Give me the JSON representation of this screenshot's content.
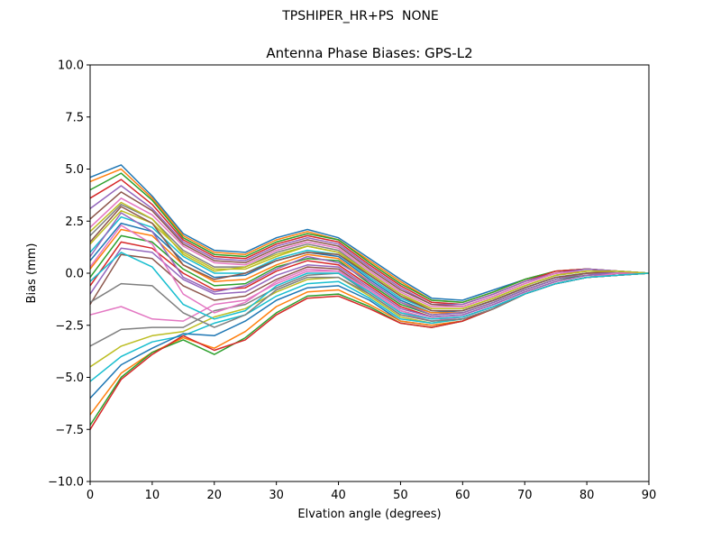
{
  "figure": {
    "suptitle": "TPSHIPER_HR+PS  NONE"
  },
  "chart_data": {
    "type": "line",
    "title": "Antenna Phase Biases: GPS-L2",
    "xlabel": "Elvation angle (degrees)",
    "ylabel": "Bias (mm)",
    "xlim": [
      0,
      90
    ],
    "ylim": [
      -10,
      10
    ],
    "xticks": [
      0,
      10,
      20,
      30,
      40,
      50,
      60,
      70,
      80,
      90
    ],
    "yticks": [
      -10.0,
      -7.5,
      -5.0,
      -2.5,
      0.0,
      2.5,
      5.0,
      7.5,
      10.0
    ],
    "xtick_labels": [
      "0",
      "10",
      "20",
      "30",
      "40",
      "50",
      "60",
      "70",
      "80",
      "90"
    ],
    "ytick_labels": [
      "−10.0",
      "−7.5",
      "−5.0",
      "−2.5",
      "0.0",
      "2.5",
      "5.0",
      "7.5",
      "10.0"
    ],
    "grid": false,
    "legend": "none",
    "colors": [
      "#1f77b4",
      "#ff7f0e",
      "#2ca02c",
      "#d62728",
      "#9467bd",
      "#8c564b",
      "#e377c2",
      "#7f7f7f",
      "#bcbd22",
      "#17becf"
    ],
    "x": [
      0,
      5,
      10,
      15,
      20,
      25,
      30,
      35,
      40,
      45,
      50,
      55,
      60,
      65,
      70,
      75,
      80,
      85,
      90
    ],
    "series": [
      {
        "values": [
          4.6,
          5.2,
          3.7,
          1.9,
          1.1,
          1.0,
          1.7,
          2.1,
          1.7,
          0.7,
          -0.3,
          -1.2,
          -1.3,
          -0.8,
          -0.3,
          0.1,
          0.2,
          0.1,
          0.0
        ]
      },
      {
        "values": [
          4.4,
          5.0,
          3.6,
          1.8,
          1.0,
          0.9,
          1.6,
          2.0,
          1.6,
          0.6,
          -0.4,
          -1.3,
          -1.4,
          -0.9,
          -0.3,
          0.1,
          0.2,
          0.1,
          0.0
        ]
      },
      {
        "values": [
          4.0,
          4.8,
          3.5,
          1.7,
          0.9,
          0.8,
          1.5,
          1.9,
          1.6,
          0.5,
          -0.5,
          -1.3,
          -1.4,
          -0.9,
          -0.3,
          0.1,
          0.2,
          0.1,
          0.0
        ]
      },
      {
        "values": [
          3.6,
          4.5,
          3.3,
          1.6,
          0.8,
          0.7,
          1.4,
          1.8,
          1.5,
          0.4,
          -0.6,
          -1.4,
          -1.5,
          -1.0,
          -0.4,
          0.1,
          0.2,
          0.1,
          0.0
        ]
      },
      {
        "values": [
          3.1,
          4.2,
          3.1,
          1.5,
          0.7,
          0.6,
          1.3,
          1.7,
          1.4,
          0.3,
          -0.7,
          -1.5,
          -1.5,
          -1.0,
          -0.4,
          0.0,
          0.2,
          0.1,
          0.0
        ]
      },
      {
        "values": [
          2.6,
          3.9,
          3.0,
          1.4,
          0.6,
          0.5,
          1.2,
          1.6,
          1.3,
          0.2,
          -0.8,
          -1.5,
          -1.6,
          -1.1,
          -0.5,
          0.0,
          0.1,
          0.1,
          0.0
        ]
      },
      {
        "values": [
          2.2,
          3.6,
          2.8,
          1.3,
          0.5,
          0.4,
          1.1,
          1.5,
          1.2,
          0.1,
          -0.9,
          -1.6,
          -1.6,
          -1.1,
          -0.5,
          0.0,
          0.1,
          0.1,
          0.0
        ]
      },
      {
        "values": [
          1.8,
          3.3,
          2.6,
          1.1,
          0.3,
          0.3,
          1.0,
          1.4,
          1.1,
          0.0,
          -1.0,
          -1.7,
          -1.7,
          -1.2,
          -0.6,
          -0.1,
          0.1,
          0.1,
          0.0
        ]
      },
      {
        "values": [
          1.4,
          3.0,
          2.4,
          1.0,
          0.2,
          0.2,
          0.8,
          1.3,
          1.0,
          -0.1,
          -1.1,
          -1.7,
          -1.7,
          -1.2,
          -0.6,
          -0.1,
          0.1,
          0.1,
          0.0
        ]
      },
      {
        "values": [
          1.0,
          2.7,
          2.2,
          0.8,
          0.0,
          0.0,
          0.7,
          1.1,
          0.9,
          -0.2,
          -1.2,
          -1.8,
          -1.8,
          -1.3,
          -0.7,
          -0.2,
          0.0,
          0.1,
          0.0
        ]
      },
      {
        "values": [
          0.6,
          2.4,
          2.0,
          0.6,
          -0.2,
          -0.1,
          0.6,
          1.0,
          0.8,
          -0.3,
          -1.3,
          -1.9,
          -1.8,
          -1.3,
          -0.7,
          -0.2,
          0.0,
          0.0,
          0.0
        ]
      },
      {
        "values": [
          0.2,
          2.1,
          1.8,
          0.4,
          -0.4,
          -0.3,
          0.4,
          0.9,
          0.7,
          -0.4,
          -1.4,
          -1.9,
          -1.9,
          -1.4,
          -0.8,
          -0.3,
          0.0,
          0.0,
          0.0
        ]
      },
      {
        "values": [
          -0.2,
          1.8,
          1.5,
          0.2,
          -0.6,
          -0.5,
          0.3,
          0.7,
          0.6,
          -0.5,
          -1.5,
          -2.0,
          -1.9,
          -1.4,
          -0.8,
          -0.3,
          -0.1,
          0.0,
          0.0
        ]
      },
      {
        "values": [
          -0.6,
          1.5,
          1.2,
          0.0,
          -0.8,
          -0.7,
          0.1,
          0.6,
          0.4,
          -0.6,
          -1.6,
          -2.1,
          -2.0,
          -1.5,
          -0.9,
          -0.4,
          -0.1,
          0.0,
          0.0
        ]
      },
      {
        "values": [
          -1.0,
          1.2,
          1.0,
          -0.3,
          -1.0,
          -0.9,
          -0.1,
          0.4,
          0.3,
          -0.7,
          -1.7,
          -2.1,
          -2.0,
          -1.5,
          -0.9,
          -0.4,
          -0.1,
          0.0,
          0.0
        ]
      },
      {
        "values": [
          -1.5,
          0.9,
          0.7,
          -0.6,
          -1.3,
          -1.1,
          -0.3,
          0.3,
          0.2,
          -0.8,
          -1.8,
          -2.2,
          -2.1,
          -1.6,
          -1.0,
          -0.5,
          -0.2,
          0.0,
          0.0
        ]
      },
      {
        "values": [
          -2.0,
          -1.6,
          -2.2,
          -2.3,
          -1.5,
          -1.3,
          -0.5,
          0.1,
          0.1,
          -0.9,
          -1.9,
          -2.3,
          -2.1,
          -1.6,
          -1.0,
          -0.5,
          -0.2,
          -0.1,
          0.0
        ]
      },
      {
        "values": [
          -3.5,
          -2.7,
          -2.6,
          -2.6,
          -1.8,
          -1.5,
          -0.7,
          -0.1,
          0.0,
          -1.0,
          -2.0,
          -2.3,
          -2.2,
          -1.7,
          -1.0,
          -0.5,
          -0.2,
          -0.1,
          0.0
        ]
      },
      {
        "values": [
          -4.5,
          -3.5,
          -3.0,
          -2.8,
          -2.1,
          -1.7,
          -0.9,
          -0.3,
          -0.2,
          -1.1,
          -2.1,
          -2.4,
          -2.2,
          -1.7,
          -1.0,
          -0.5,
          -0.2,
          -0.1,
          0.0
        ]
      },
      {
        "values": [
          -5.2,
          -4.0,
          -3.3,
          -3.0,
          -2.4,
          -2.0,
          -1.1,
          -0.5,
          -0.4,
          -1.2,
          -2.2,
          -2.4,
          -2.2,
          -1.7,
          -1.0,
          -0.5,
          -0.2,
          -0.1,
          0.0
        ]
      },
      {
        "values": [
          -6.0,
          -4.4,
          -3.6,
          -2.9,
          -3.0,
          -2.3,
          -1.3,
          -0.7,
          -0.6,
          -1.3,
          -2.3,
          -2.5,
          -2.3,
          -1.7,
          -1.0,
          -0.5,
          -0.2,
          -0.1,
          0.0
        ]
      },
      {
        "values": [
          -6.8,
          -4.8,
          -3.8,
          -3.1,
          -3.6,
          -2.8,
          -1.6,
          -0.9,
          -0.8,
          -1.5,
          -2.3,
          -2.5,
          -2.3,
          -1.7,
          -1.0,
          -0.5,
          -0.2,
          -0.1,
          0.0
        ]
      },
      {
        "values": [
          -7.3,
          -5.0,
          -3.8,
          -3.2,
          -3.9,
          -3.1,
          -1.9,
          -1.1,
          -1.0,
          -1.6,
          -2.4,
          -2.6,
          -2.3,
          -1.7,
          -1.0,
          -0.5,
          -0.2,
          -0.1,
          0.0
        ]
      },
      {
        "values": [
          -7.5,
          -5.1,
          -3.9,
          -3.0,
          -3.7,
          -3.2,
          -2.0,
          -1.2,
          -1.1,
          -1.7,
          -2.4,
          -2.6,
          -2.3,
          -1.7,
          -1.0,
          -0.5,
          -0.2,
          -0.1,
          0.0
        ]
      },
      {
        "values": [
          0.8,
          2.9,
          2.0,
          -0.2,
          -0.9,
          -0.6,
          0.2,
          0.8,
          0.5,
          -0.4,
          -1.4,
          -2.0,
          -1.9,
          -1.4,
          -0.8,
          -0.3,
          0.0,
          0.0,
          0.0
        ]
      },
      {
        "values": [
          1.5,
          3.2,
          2.4,
          0.4,
          -0.3,
          0.0,
          0.6,
          1.0,
          0.9,
          -0.1,
          -1.1,
          -1.8,
          -1.8,
          -1.3,
          -0.7,
          -0.2,
          0.0,
          0.1,
          0.0
        ]
      },
      {
        "values": [
          0.3,
          2.3,
          1.4,
          -1.0,
          -1.9,
          -1.4,
          -0.4,
          0.2,
          0.1,
          -0.8,
          -1.8,
          -2.2,
          -2.1,
          -1.6,
          -1.0,
          -0.5,
          -0.2,
          0.0,
          0.0
        ]
      },
      {
        "values": [
          -1.4,
          -0.5,
          -0.6,
          -1.9,
          -2.6,
          -2.0,
          -0.8,
          -0.2,
          -0.2,
          -1.0,
          -2.0,
          -2.3,
          -2.2,
          -1.7,
          -1.0,
          -0.5,
          -0.2,
          -0.1,
          0.0
        ]
      },
      {
        "values": [
          2.0,
          3.4,
          2.6,
          0.9,
          0.1,
          0.3,
          0.9,
          1.3,
          1.0,
          0.0,
          -1.0,
          -1.7,
          -1.7,
          -1.2,
          -0.6,
          -0.1,
          0.1,
          0.1,
          0.0
        ]
      },
      {
        "values": [
          -0.4,
          1.0,
          0.3,
          -1.5,
          -2.2,
          -1.8,
          -0.6,
          0.0,
          0.0,
          -0.9,
          -1.9,
          -2.2,
          -2.1,
          -1.6,
          -1.0,
          -0.5,
          -0.2,
          -0.1,
          0.0
        ]
      }
    ]
  }
}
